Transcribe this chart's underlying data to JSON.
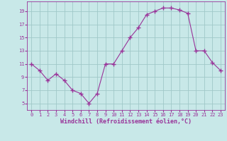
{
  "x": [
    0,
    1,
    2,
    3,
    4,
    5,
    6,
    7,
    8,
    9,
    10,
    11,
    12,
    13,
    14,
    15,
    16,
    17,
    18,
    19,
    20,
    21,
    22,
    23
  ],
  "y": [
    11.0,
    10.0,
    8.5,
    9.5,
    8.5,
    7.0,
    6.5,
    5.0,
    6.5,
    11.0,
    11.0,
    13.0,
    15.0,
    16.5,
    18.5,
    19.0,
    19.5,
    19.5,
    19.2,
    18.7,
    13.0,
    13.0,
    11.2,
    10.0
  ],
  "line_color": "#993399",
  "marker_color": "#993399",
  "bg_color": "#c8e8e8",
  "grid_color": "#a0c8c8",
  "xlabel": "Windchill (Refroidissement éolien,°C)",
  "xlim": [
    -0.5,
    23.5
  ],
  "ylim": [
    4.0,
    20.5
  ],
  "yticks": [
    5,
    7,
    9,
    11,
    13,
    15,
    17,
    19
  ],
  "xticks": [
    0,
    1,
    2,
    3,
    4,
    5,
    6,
    7,
    8,
    9,
    10,
    11,
    12,
    13,
    14,
    15,
    16,
    17,
    18,
    19,
    20,
    21,
    22,
    23
  ],
  "font_color": "#993399",
  "font_name": "monospace",
  "tick_fontsize": 5.0,
  "xlabel_fontsize": 6.0
}
